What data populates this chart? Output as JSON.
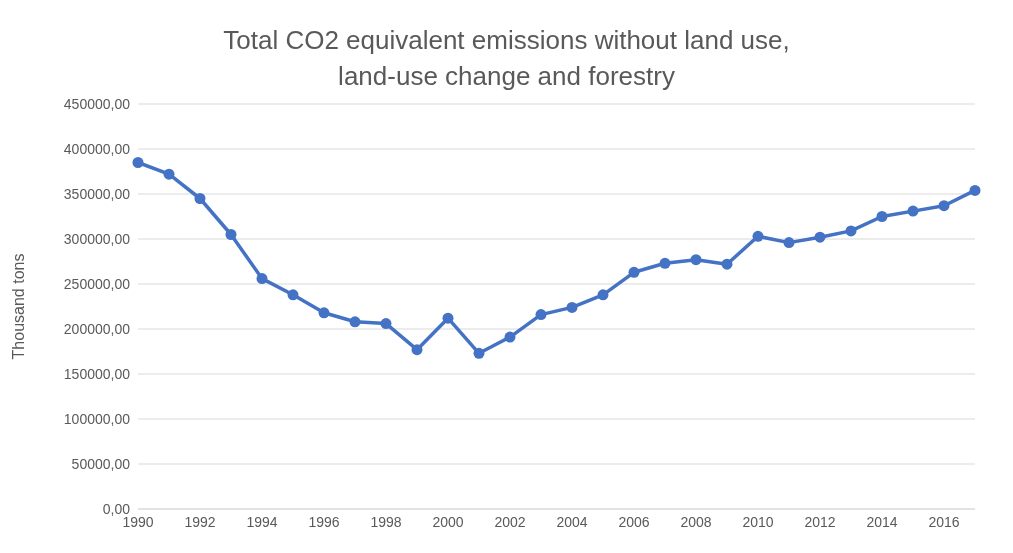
{
  "chart_data": {
    "type": "line",
    "title": "Total CO2 equivalent emissions without land use, land-use change and forestry",
    "ylabel": "Thousand tons",
    "categories": [
      "1990",
      null,
      "1992",
      null,
      "1994",
      null,
      "1996",
      null,
      "1998",
      null,
      "2000",
      null,
      "2002",
      null,
      "2004",
      null,
      "2006",
      null,
      "2008",
      null,
      "2010",
      null,
      "2012",
      null,
      "2014",
      null,
      "2016",
      null
    ],
    "series": [
      {
        "color": "#4472c4",
        "values": [
          385000,
          372000,
          345000,
          305000,
          256000,
          238000,
          218000,
          208000,
          206000,
          177000,
          212000,
          173000,
          191000,
          216000,
          224000,
          238000,
          263000,
          273000,
          277000,
          272000,
          303000,
          296000,
          302000,
          309000,
          325000,
          331000,
          337000,
          354000
        ]
      }
    ],
    "ylim": [
      0,
      450000
    ],
    "yticks": [
      {
        "value": 0,
        "label": "0,00"
      },
      {
        "value": 50000,
        "label": "50000,00"
      },
      {
        "value": 100000,
        "label": "100000,00"
      },
      {
        "value": 150000,
        "label": "150000,00"
      },
      {
        "value": 200000,
        "label": "200000,00"
      },
      {
        "value": 250000,
        "label": "250000,00"
      },
      {
        "value": 300000,
        "label": "300000,00"
      },
      {
        "value": 350000,
        "label": "350000,00"
      },
      {
        "value": 400000,
        "label": "400000,00"
      },
      {
        "value": 450000,
        "label": "450000,00"
      }
    ],
    "grid": "y",
    "marker": "circle",
    "line_style": "solid"
  }
}
